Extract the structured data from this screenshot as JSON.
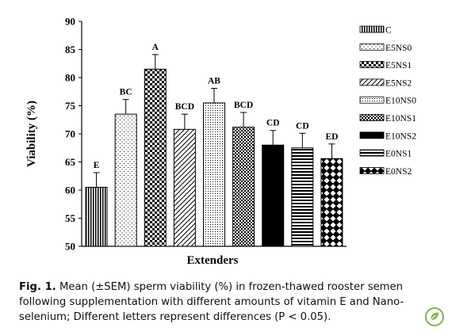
{
  "chart_data": {
    "type": "bar",
    "ylabel": "Viability (%)",
    "xlabel": "Extenders",
    "ylim": [
      50,
      90
    ],
    "yticks": [
      50,
      55,
      60,
      65,
      70,
      75,
      80,
      85,
      90
    ],
    "legend_position": "right",
    "categories": [
      "C",
      "E5NS0",
      "E5NS1",
      "E5NS2",
      "E10NS0",
      "E10NS1",
      "E10NS2",
      "E0NS1",
      "E0NS2"
    ],
    "values": [
      60.5,
      73.5,
      81.5,
      70.8,
      75.5,
      71.2,
      68.0,
      67.5,
      65.6
    ],
    "errors": [
      2.6,
      2.6,
      2.6,
      2.7,
      2.6,
      2.6,
      2.6,
      2.6,
      2.6
    ],
    "letters": [
      "E",
      "BC",
      "A",
      "BCD",
      "AB",
      "BCD",
      "CD",
      "CD",
      "ED"
    ],
    "patterns": [
      "vertical-lines",
      "sparse-dots",
      "checker",
      "diagonal-right",
      "fine-dots",
      "dense-checker",
      "solid-black",
      "horizontal-lines",
      "diamond"
    ]
  },
  "caption": {
    "label": "Fig. 1.",
    "text": "Mean (±SEM) sperm viability (%) in frozen-thawed rooster semen following supplementation with different amounts of vitamin E and Nano-selenium; Different letters represent differences (P < 0.05)."
  },
  "badge": {
    "icon": "publisher-leaf-icon",
    "color": "#7ab648"
  }
}
